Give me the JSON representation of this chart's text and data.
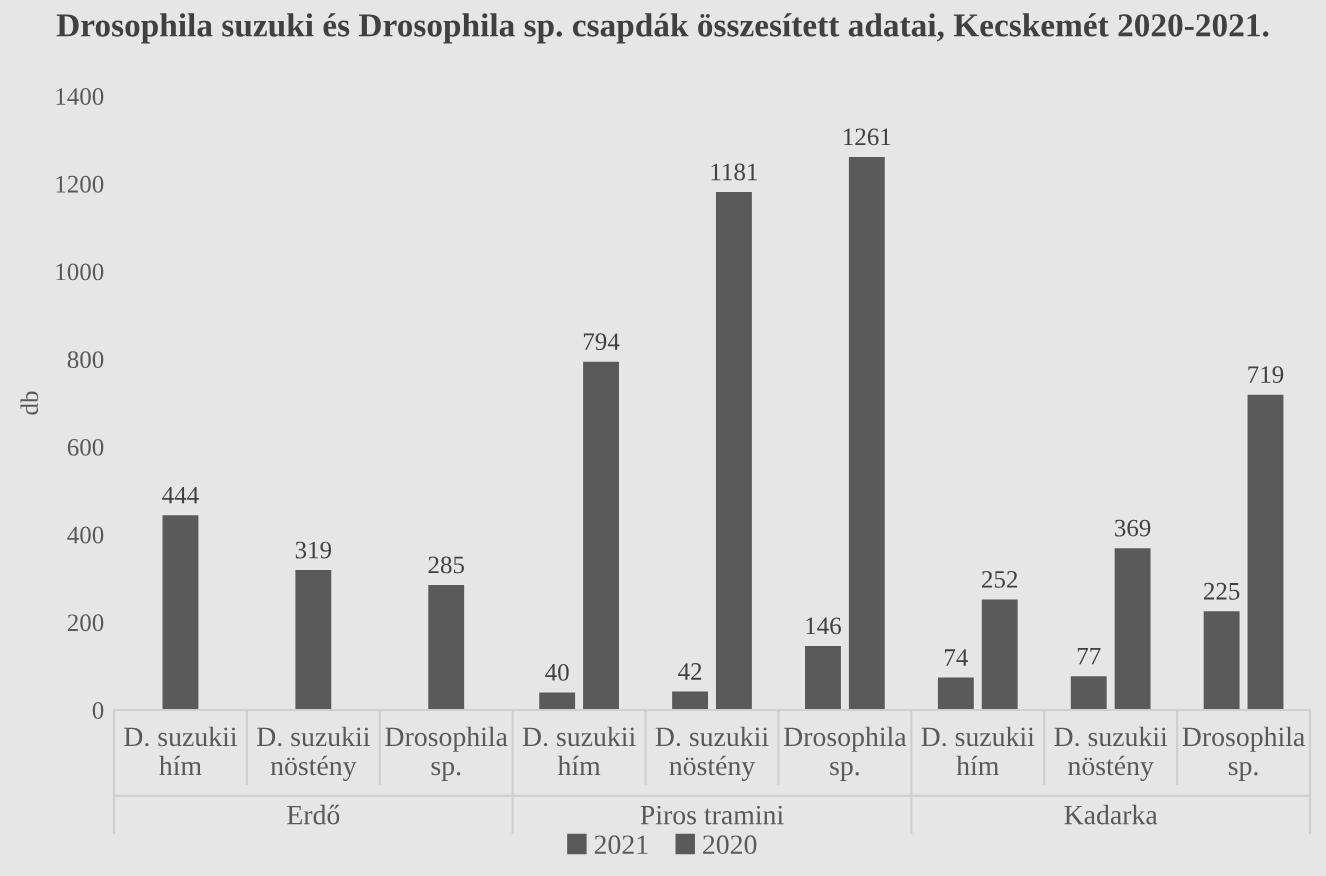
{
  "chart_data": {
    "type": "bar",
    "title": "Drosophila suzuki és Drosophila sp. csapdák összesített adatai, Kecskemét 2020-2021.",
    "ylabel": "db",
    "categories": [
      "D. suzukii\nhím",
      "D. suzukii\nnöstény",
      "Drosophila\nsp.",
      "D. suzukii\nhím",
      "D. suzukii\nnöstény",
      "Drosophila\nsp.",
      "D. suzukii\nhím",
      "D. suzukii\nnöstény",
      "Drosophila\nsp."
    ],
    "series": [
      {
        "name": "2021",
        "color": "#5a5a5a",
        "values": [
          444,
          319,
          285,
          40,
          42,
          146,
          74,
          77,
          225
        ]
      },
      {
        "name": "2020",
        "color": "#5a5a5a",
        "values": [
          null,
          null,
          null,
          794,
          1181,
          1261,
          252,
          369,
          719
        ]
      }
    ],
    "annotations": [
      "Erdő",
      "Piros tramini",
      "Kadarka"
    ],
    "ylim": [
      0,
      1400
    ],
    "yticks": [
      0,
      200,
      400,
      600,
      800,
      1000,
      1200,
      1400
    ],
    "data_labels": true,
    "grid": false,
    "legend": "bottom"
  }
}
